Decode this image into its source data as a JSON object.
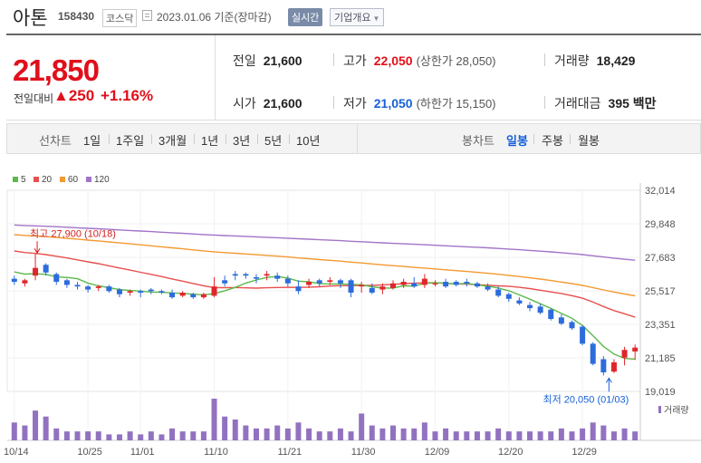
{
  "header": {
    "name": "아톤",
    "code": "158430",
    "market": "코스닥",
    "asof": "2023.01.06  기준(장마감)",
    "realtime": "실시간",
    "company_info": "기업개요"
  },
  "summary": {
    "price": "21,850",
    "change_label": "전일대비",
    "change_value": "▲250",
    "change_pct": "+1.16%",
    "prev_close_label": "전일",
    "prev_close": "21,600",
    "high_label": "고가",
    "high": "22,050",
    "upper_limit": "(상한가 28,050)",
    "volume_label": "거래량",
    "volume": "18,429",
    "open_label": "시가",
    "open": "21,600",
    "low_label": "저가",
    "low": "21,050",
    "lower_limit": "(하한가 15,150)",
    "amount_label": "거래대금",
    "amount": "395 백만"
  },
  "tabs": {
    "line_title": "선차트",
    "line": [
      "1일",
      "1주일",
      "3개월",
      "1년",
      "3년",
      "5년",
      "10년"
    ],
    "candle_title": "봉차트",
    "candle": [
      "일봉",
      "주봉",
      "월봉"
    ],
    "active_candle": 0
  },
  "colors": {
    "up": "#e0262b",
    "down": "#2c6cdc",
    "ma5": "#5cb94a",
    "ma20": "#e8504f",
    "ma60": "#f39a32",
    "ma120": "#a274c8",
    "volume": "#9272c0"
  },
  "chart_data": {
    "type": "candlestick",
    "legend": [
      "5",
      "20",
      "60",
      "120"
    ],
    "yticks": [
      "32,014",
      "29,848",
      "27,683",
      "25,517",
      "23,351",
      "21,185",
      "19,019"
    ],
    "ylim": [
      19019,
      32014
    ],
    "xticks": [
      {
        "label": "10/14",
        "index": 0
      },
      {
        "label": "10/25",
        "index": 7
      },
      {
        "label": "11/01",
        "index": 12
      },
      {
        "label": "11/10",
        "index": 19
      },
      {
        "label": "11/21",
        "index": 26
      },
      {
        "label": "11/30",
        "index": 33
      },
      {
        "label": "12/09",
        "index": 40
      },
      {
        "label": "12/20",
        "index": 47
      },
      {
        "label": "12/29",
        "index": 54
      }
    ],
    "max_annotation": "최고 27,900 (10/18)",
    "max_index": 2,
    "min_annotation": "최저 20,050 (01/03)",
    "min_index": 56,
    "volume_label": "거래량",
    "candles": [
      [
        26300,
        26500,
        25900,
        26100
      ],
      [
        26000,
        26300,
        25800,
        26200
      ],
      [
        26500,
        27900,
        26200,
        27000
      ],
      [
        27200,
        27300,
        26500,
        26700
      ],
      [
        26600,
        26700,
        25900,
        26100
      ],
      [
        26200,
        26300,
        25700,
        25900
      ],
      [
        25900,
        26100,
        25600,
        25800
      ],
      [
        25800,
        25900,
        25400,
        25600
      ],
      [
        25700,
        25900,
        25500,
        25800
      ],
      [
        25800,
        25900,
        25400,
        25500
      ],
      [
        25600,
        25700,
        25100,
        25300
      ],
      [
        25400,
        25600,
        25200,
        25500
      ],
      [
        25500,
        25600,
        25100,
        25400
      ],
      [
        25600,
        25700,
        25300,
        25500
      ],
      [
        25500,
        25600,
        25300,
        25400
      ],
      [
        25400,
        25600,
        25000,
        25100
      ],
      [
        25200,
        25500,
        25100,
        25400
      ],
      [
        25300,
        25400,
        25000,
        25100
      ],
      [
        25100,
        25400,
        25000,
        25300
      ],
      [
        25200,
        26400,
        25100,
        25800
      ],
      [
        26200,
        26500,
        25800,
        26000
      ],
      [
        26600,
        26800,
        26200,
        26500
      ],
      [
        26600,
        26700,
        26300,
        26500
      ],
      [
        26400,
        26600,
        26000,
        26300
      ],
      [
        26500,
        26800,
        26200,
        26600
      ],
      [
        26500,
        26700,
        26100,
        26300
      ],
      [
        26300,
        26500,
        25800,
        26000
      ],
      [
        25800,
        26200,
        25300,
        25500
      ],
      [
        25900,
        26300,
        25700,
        26100
      ],
      [
        26200,
        26300,
        25800,
        26000
      ],
      [
        26100,
        26400,
        25900,
        26200
      ],
      [
        26200,
        26300,
        25700,
        26000
      ],
      [
        26200,
        26300,
        25100,
        25400
      ],
      [
        25800,
        26100,
        25400,
        25900
      ],
      [
        25700,
        26000,
        25300,
        25400
      ],
      [
        25600,
        26000,
        25300,
        25800
      ],
      [
        25700,
        26200,
        25600,
        26000
      ],
      [
        25900,
        26300,
        25700,
        26100
      ],
      [
        26000,
        26400,
        25700,
        25800
      ],
      [
        25900,
        26600,
        25700,
        26300
      ],
      [
        26000,
        26200,
        25800,
        26000
      ],
      [
        26100,
        26300,
        25700,
        25800
      ],
      [
        26100,
        26200,
        25800,
        25900
      ],
      [
        26100,
        26300,
        25800,
        26000
      ],
      [
        26000,
        26100,
        25700,
        25800
      ],
      [
        25800,
        26000,
        25500,
        25600
      ],
      [
        25600,
        25800,
        25100,
        25200
      ],
      [
        25300,
        25400,
        24800,
        25000
      ],
      [
        24900,
        25100,
        24600,
        24700
      ],
      [
        24600,
        24800,
        24200,
        24400
      ],
      [
        24500,
        24700,
        24000,
        24100
      ],
      [
        24300,
        24400,
        23600,
        23700
      ],
      [
        23800,
        24000,
        23300,
        23400
      ],
      [
        23500,
        23600,
        23000,
        23100
      ],
      [
        23200,
        23300,
        22000,
        22100
      ],
      [
        22100,
        22200,
        20700,
        20800
      ],
      [
        21100,
        21300,
        20050,
        20250
      ],
      [
        20300,
        21100,
        20200,
        20900
      ],
      [
        21200,
        21900,
        20700,
        21700
      ],
      [
        21600,
        22050,
        21050,
        21850
      ]
    ],
    "volume": [
      6,
      5,
      10,
      8,
      4,
      3,
      3,
      3,
      3,
      2,
      2,
      3,
      2,
      3,
      2,
      4,
      3,
      3,
      3,
      14,
      8,
      7,
      5,
      4,
      4,
      5,
      4,
      6,
      4,
      3,
      3,
      4,
      3,
      9,
      5,
      4,
      5,
      4,
      4,
      6,
      3,
      4,
      3,
      3,
      3,
      3,
      4,
      3,
      3,
      3,
      3,
      3,
      4,
      3,
      4,
      6,
      5,
      3,
      4,
      3
    ]
  }
}
